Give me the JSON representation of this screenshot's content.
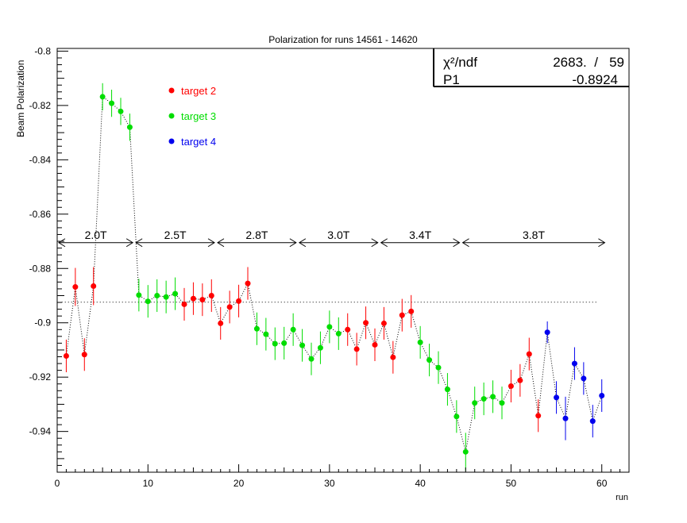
{
  "chart_data": {
    "type": "scatter",
    "title": "Polarization for runs 14561 - 14620",
    "xlabel": "run",
    "ylabel": "Beam Polarization",
    "xlim": [
      0,
      63
    ],
    "ylim": [
      -0.955,
      -0.799
    ],
    "x_ticks": [
      0,
      10,
      20,
      30,
      40,
      50,
      60
    ],
    "x_tick_labels": [
      "0",
      "10",
      "20",
      "30",
      "40",
      "50",
      "60"
    ],
    "y_ticks": [
      -0.8,
      -0.82,
      -0.84,
      -0.86,
      -0.88,
      -0.9,
      -0.92,
      -0.94
    ],
    "y_tick_labels": [
      "-0.8",
      "-0.82",
      "-0.84",
      "-0.86",
      "-0.88",
      "-0.9",
      "-0.92",
      "-0.94"
    ],
    "grid": false,
    "legend_position": "top-left",
    "stats_box": {
      "chi2_label": "χ²/ndf",
      "chi2_value": "2683.  /   59",
      "p1_label": "P1",
      "p1_value": "-0.8924"
    },
    "fit_line": {
      "y": -0.8924,
      "x_range": [
        0.5,
        59.5
      ],
      "style": "dotted"
    },
    "field_regions": [
      {
        "label": "2.0T",
        "x_start": 0,
        "x_end": 8.5
      },
      {
        "label": "2.5T",
        "x_start": 8.5,
        "x_end": 17.5
      },
      {
        "label": "2.8T",
        "x_start": 17.5,
        "x_end": 26.5
      },
      {
        "label": "3.0T",
        "x_start": 26.5,
        "x_end": 35.5
      },
      {
        "label": "3.4T",
        "x_start": 35.5,
        "x_end": 44.5
      },
      {
        "label": "3.8T",
        "x_start": 44.5,
        "x_end": 60.5
      }
    ],
    "field_arrow_y": -0.8705,
    "series": [
      {
        "name": "target 2",
        "color": "#ff0000",
        "points": [
          {
            "x": 1,
            "y": -0.9122,
            "err": 0.006
          },
          {
            "x": 2,
            "y": -0.8868,
            "err": 0.007
          },
          {
            "x": 3,
            "y": -0.9117,
            "err": 0.006
          },
          {
            "x": 4,
            "y": -0.8865,
            "err": 0.007
          },
          {
            "x": 14,
            "y": -0.8932,
            "err": 0.006
          },
          {
            "x": 15,
            "y": -0.8911,
            "err": 0.006
          },
          {
            "x": 16,
            "y": -0.8915,
            "err": 0.006
          },
          {
            "x": 17,
            "y": -0.89,
            "err": 0.006
          },
          {
            "x": 18,
            "y": -0.9002,
            "err": 0.006
          },
          {
            "x": 19,
            "y": -0.8942,
            "err": 0.006
          },
          {
            "x": 20,
            "y": -0.892,
            "err": 0.006
          },
          {
            "x": 21,
            "y": -0.8855,
            "err": 0.006
          },
          {
            "x": 32,
            "y": -0.9025,
            "err": 0.006
          },
          {
            "x": 33,
            "y": -0.9097,
            "err": 0.006
          },
          {
            "x": 34,
            "y": -0.9,
            "err": 0.006
          },
          {
            "x": 35,
            "y": -0.9081,
            "err": 0.006
          },
          {
            "x": 36,
            "y": -0.9002,
            "err": 0.006
          },
          {
            "x": 37,
            "y": -0.9127,
            "err": 0.006
          },
          {
            "x": 38,
            "y": -0.8972,
            "err": 0.006
          },
          {
            "x": 39,
            "y": -0.8958,
            "err": 0.006
          },
          {
            "x": 50,
            "y": -0.9233,
            "err": 0.006
          },
          {
            "x": 51,
            "y": -0.9212,
            "err": 0.006
          },
          {
            "x": 52,
            "y": -0.9115,
            "err": 0.006
          },
          {
            "x": 53,
            "y": -0.9342,
            "err": 0.006
          }
        ]
      },
      {
        "name": "target 3",
        "color": "#00dd00",
        "points": [
          {
            "x": 5,
            "y": -0.8168,
            "err": 0.005
          },
          {
            "x": 6,
            "y": -0.8192,
            "err": 0.005
          },
          {
            "x": 7,
            "y": -0.8222,
            "err": 0.005
          },
          {
            "x": 8,
            "y": -0.828,
            "err": 0.005
          },
          {
            "x": 9,
            "y": -0.8898,
            "err": 0.006
          },
          {
            "x": 10,
            "y": -0.8921,
            "err": 0.006
          },
          {
            "x": 11,
            "y": -0.89,
            "err": 0.006
          },
          {
            "x": 12,
            "y": -0.8905,
            "err": 0.006
          },
          {
            "x": 13,
            "y": -0.8893,
            "err": 0.006
          },
          {
            "x": 22,
            "y": -0.9022,
            "err": 0.006
          },
          {
            "x": 23,
            "y": -0.9042,
            "err": 0.006
          },
          {
            "x": 24,
            "y": -0.9077,
            "err": 0.006
          },
          {
            "x": 25,
            "y": -0.9075,
            "err": 0.006
          },
          {
            "x": 26,
            "y": -0.9025,
            "err": 0.006
          },
          {
            "x": 27,
            "y": -0.9083,
            "err": 0.006
          },
          {
            "x": 28,
            "y": -0.9133,
            "err": 0.006
          },
          {
            "x": 29,
            "y": -0.9092,
            "err": 0.006
          },
          {
            "x": 30,
            "y": -0.9015,
            "err": 0.006
          },
          {
            "x": 31,
            "y": -0.904,
            "err": 0.006
          },
          {
            "x": 40,
            "y": -0.9072,
            "err": 0.006
          },
          {
            "x": 41,
            "y": -0.9137,
            "err": 0.006
          },
          {
            "x": 42,
            "y": -0.9165,
            "err": 0.006
          },
          {
            "x": 43,
            "y": -0.9245,
            "err": 0.006
          },
          {
            "x": 44,
            "y": -0.9345,
            "err": 0.006
          },
          {
            "x": 45,
            "y": -0.9475,
            "err": 0.007
          },
          {
            "x": 46,
            "y": -0.9295,
            "err": 0.006
          },
          {
            "x": 47,
            "y": -0.928,
            "err": 0.006
          },
          {
            "x": 48,
            "y": -0.9272,
            "err": 0.006
          },
          {
            "x": 49,
            "y": -0.9295,
            "err": 0.006
          }
        ]
      },
      {
        "name": "target 4",
        "color": "#0000ee",
        "points": [
          {
            "x": 54,
            "y": -0.9035,
            "err": 0.004
          },
          {
            "x": 55,
            "y": -0.9275,
            "err": 0.006
          },
          {
            "x": 56,
            "y": -0.9352,
            "err": 0.008
          },
          {
            "x": 57,
            "y": -0.915,
            "err": 0.006
          },
          {
            "x": 58,
            "y": -0.9205,
            "err": 0.006
          },
          {
            "x": 59,
            "y": -0.9362,
            "err": 0.006
          },
          {
            "x": 60,
            "y": -0.9268,
            "err": 0.006
          }
        ]
      }
    ]
  }
}
